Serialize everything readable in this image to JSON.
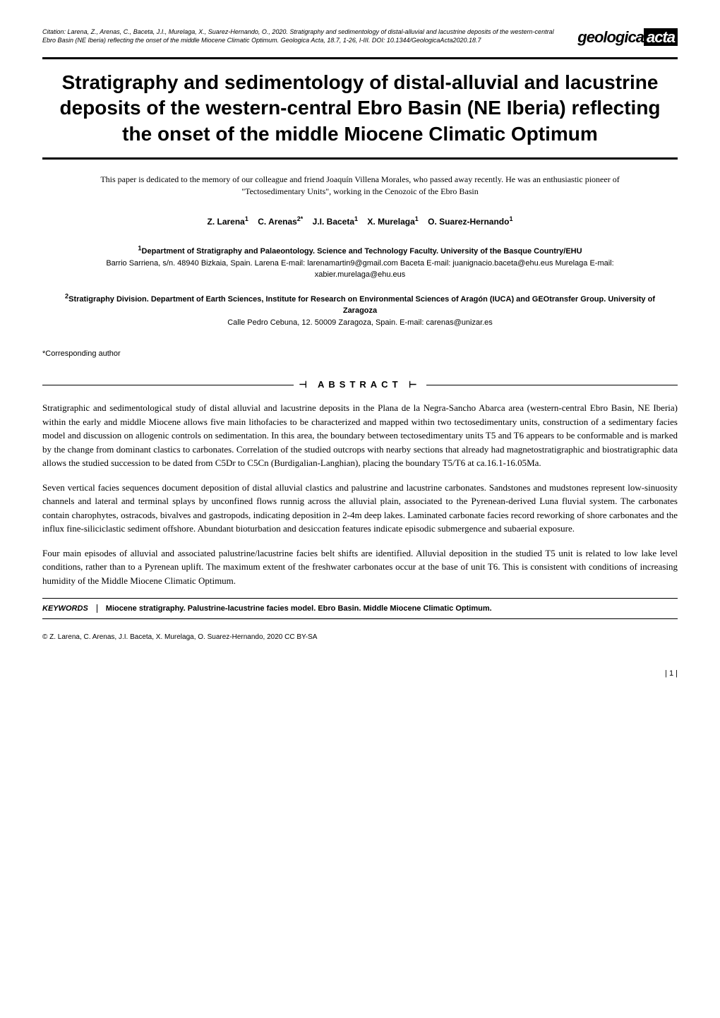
{
  "citation": {
    "label": "Citation:",
    "text": "Larena, Z., Arenas, C., Baceta, J.I., Murelaga, X., Suarez-Hernando, O., 2020. Stratigraphy and sedimentology of distal-alluvial and lacustrine deposits of the western-central Ebro Basin (NE Iberia) reflecting the onset of the middle Miocene Climatic Optimum. Geologica Acta, 18.7, 1-26, I-III. DOI: 10.1344/GeologicaActa2020.18.7"
  },
  "journal": {
    "name_part1": "geologica",
    "name_part2": "acta"
  },
  "title": "Stratigraphy and sedimentology of distal-alluvial and lacustrine deposits of the western-central Ebro Basin (NE Iberia) reflecting the onset of the middle Miocene Climatic Optimum",
  "dedication": "This paper is dedicated to the memory of our colleague and friend Joaquín Villena Morales, who passed away recently. He was an enthusiastic pioneer of \"Tectosedimentary Units\", working in the Cenozoic of the Ebro Basin",
  "authors": [
    {
      "name": "Z. Larena",
      "sup": "1"
    },
    {
      "name": "C. Arenas",
      "sup": "2*"
    },
    {
      "name": "J.I. Baceta",
      "sup": "1"
    },
    {
      "name": "X. Murelaga",
      "sup": "1"
    },
    {
      "name": "O. Suarez-Hernando",
      "sup": "1"
    }
  ],
  "affiliations": [
    {
      "sup": "1",
      "title": "Department of Stratigraphy and Palaeontology. Science and Technology Faculty. University of the Basque Country/EHU",
      "detail": "Barrio Sarriena, s/n. 48940 Bizkaia, Spain. Larena E-mail: larenamartin9@gmail.com   Baceta E-mail: juanignacio.baceta@ehu.eus Murelaga E-mail: xabier.murelaga@ehu.eus"
    },
    {
      "sup": "2",
      "title": "Stratigraphy Division. Department of Earth Sciences, Institute for Research on Environmental Sciences of Aragón (IUCA) and GEOtransfer Group. University of Zaragoza",
      "detail": "Calle Pedro Cebuna, 12. 50009 Zaragoza, Spain. E-mail: carenas@unizar.es"
    }
  ],
  "corresponding": "*Corresponding author",
  "abstract_label": "ABSTRACT",
  "abstract": {
    "p1": "Stratigraphic and sedimentological study of distal alluvial and lacustrine deposits in the Plana de la Negra-Sancho Abarca area (western-central Ebro Basin, NE Iberia) within the early and middle Miocene allows five main lithofacies to be characterized and mapped within two tectosedimentary units, construction of a sedimentary facies model and discussion on allogenic controls on sedimentation. In this area, the boundary between tectosedimentary units T5 and T6 appears to be conformable and is marked by the change from dominant clastics to carbonates. Correlation of the studied outcrops with nearby sections that already had magnetostratigraphic and biostratigraphic data allows the studied succession to be dated from C5Dr to C5Cn (Burdigalian-Langhian), placing the boundary T5/T6 at ca.16.1-16.05Ma.",
    "p2": "Seven vertical facies sequences document deposition of distal alluvial clastics and palustrine and lacustrine carbonates. Sandstones and mudstones represent low-sinuosity channels and lateral and terminal splays by unconfined flows runnig across the alluvial plain, associated to the Pyrenean-derived Luna fluvial system. The carbonates contain charophytes, ostracods, bivalves and gastropods, indicating deposition in 2-4m deep lakes. Laminated carbonate facies record reworking of shore carbonates and the influx fine-siliciclastic sediment offshore. Abundant bioturbation and desiccation features indicate episodic submergence and subaerial exposure.",
    "p3": "Four main episodes of alluvial and associated palustrine/lacustrine facies belt shifts are identified. Alluvial deposition in the studied T5 unit is related to low lake level conditions, rather than to a Pyrenean uplift. The maximum extent of the freshwater carbonates occur at the base of unit T6. This is consistent with conditions of increasing humidity of the Middle Miocene Climatic Optimum."
  },
  "keywords": {
    "label": "KEYWORDS",
    "text": "Miocene stratigraphy. Palustrine-lacustrine facies model. Ebro Basin. Middle Miocene Climatic Optimum."
  },
  "copyright": "© Z. Larena, C. Arenas, J.I. Baceta, X. Murelaga, O. Suarez-Hernando, 2020 CC BY-SA",
  "page_number": "| 1 |",
  "colors": {
    "text": "#000000",
    "background": "#ffffff",
    "rule": "#000000"
  },
  "typography": {
    "title_fontsize": 28,
    "body_fontsize": 13,
    "citation_fontsize": 9,
    "author_fontsize": 12,
    "keywords_fontsize": 11
  }
}
